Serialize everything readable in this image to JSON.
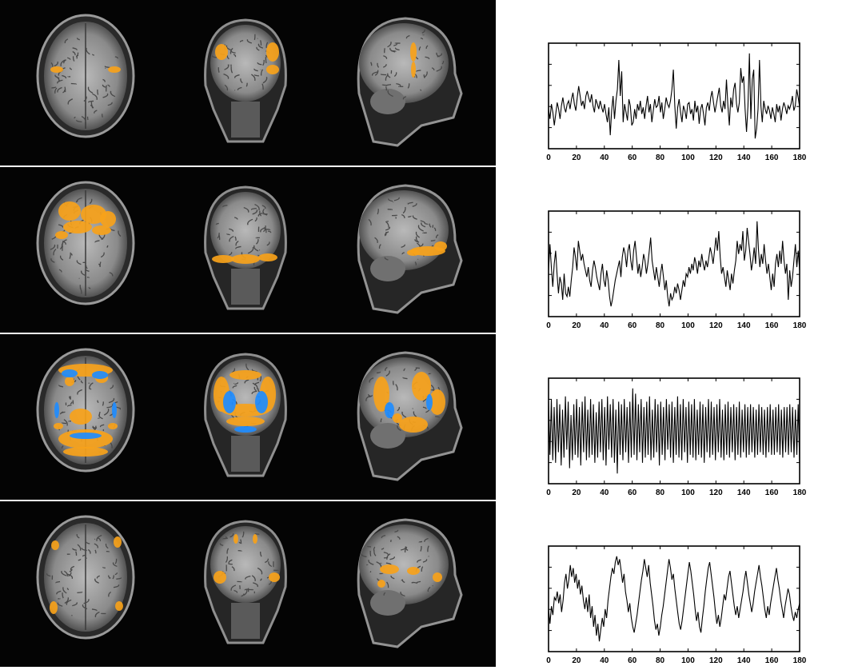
{
  "figure": {
    "rows": [
      {
        "views": [
          "axial",
          "coronal",
          "sagittal"
        ],
        "activation": "orange"
      },
      {
        "views": [
          "axial",
          "coronal",
          "sagittal"
        ],
        "activation": "orange"
      },
      {
        "views": [
          "axial",
          "coronal",
          "sagittal"
        ],
        "activation": "orange-and-blue"
      },
      {
        "views": [
          "axial",
          "coronal",
          "sagittal"
        ],
        "activation": "orange"
      }
    ],
    "colors": {
      "background": "#040404",
      "positive": "#f7a21a",
      "negative": "#1e8cff",
      "trace": "#000000"
    }
  },
  "chart_data": [
    {
      "type": "line",
      "xlim": [
        0,
        180
      ],
      "xticks": [
        "0",
        "20",
        "40",
        "60",
        "80",
        "100",
        "120",
        "140",
        "160",
        "180"
      ],
      "yticks_labeled": false,
      "series": [
        {
          "values": [
            0.2,
            -0.1,
            0.35,
            0.1,
            -0.3,
            0.05,
            0.4,
            0.2,
            -0.1,
            0.3,
            0.55,
            0.25,
            0.1,
            0.35,
            0.45,
            0.2,
            0.5,
            0.7,
            0.35,
            0.15,
            0.55,
            0.9,
            0.6,
            0.3,
            0.45,
            0.2,
            0.6,
            0.75,
            0.55,
            0.4,
            0.65,
            0.3,
            0.1,
            0.5,
            0.35,
            0.2,
            0.45,
            0.25,
            0.1,
            0.35,
            0.05,
            -0.2,
            0.25,
            -0.6,
            0.15,
            0.6,
            -0.1,
            0.45,
            0.8,
            1.7,
            0.6,
            1.35,
            -0.2,
            0.35,
            0.1,
            -0.15,
            0.5,
            0.3,
            -0.3,
            -0.2,
            0.2,
            -0.1,
            0.35,
            0.15,
            0.45,
            0.05,
            0.25,
            -0.1,
            0.3,
            0.6,
            0.1,
            0.35,
            -0.2,
            0.15,
            0.5,
            0.25,
            0.3,
            0.6,
            0.1,
            0.4,
            -0.1,
            0.2,
            0.55,
            0.35,
            0.25,
            0.45,
            0.8,
            1.4,
            0.3,
            -0.4,
            0.25,
            0.5,
            0.1,
            -0.2,
            0.3,
            0.15,
            -0.1,
            0.35,
            0.4,
            0.05,
            0.2,
            -0.15,
            0.45,
            0.1,
            0.3,
            -0.25,
            0.2,
            0.35,
            0.05,
            -0.3,
            0.25,
            0.4,
            0.15,
            0.55,
            0.75,
            0.4,
            0.1,
            0.35,
            0.6,
            0.85,
            0.3,
            0.1,
            0.45,
            0.2,
            1.1,
            0.3,
            -0.3,
            0.55,
            0.25,
            0.8,
            1.0,
            0.35,
            0.1,
            0.4,
            1.45,
            1.0,
            1.2,
            0.2,
            -0.5,
            0.3,
            1.9,
            -0.1,
            1.1,
            1.4,
            -0.7,
            -0.4,
            0.2,
            1.7,
            0.3,
            -0.2,
            0.45,
            0.2,
            0.05,
            0.3,
            0.15,
            -0.1,
            0.25,
            0.05,
            -0.2,
            0.35,
            0.1,
            0.3,
            -0.15,
            0.2,
            0.4,
            0.25,
            0.05,
            0.3,
            0.2,
            0.35,
            0.6,
            0.15,
            0.3,
            0.8,
            0.55,
            0.25
          ]
        }
      ]
    },
    {
      "type": "line",
      "xlim": [
        0,
        180
      ],
      "xticks": [
        "0",
        "20",
        "40",
        "60",
        "80",
        "100",
        "120",
        "140",
        "160",
        "180"
      ],
      "yticks_labeled": false,
      "series": [
        {
          "values": [
            0.3,
            1.1,
            0.4,
            -0.2,
            0.5,
            0.9,
            0.2,
            -0.4,
            0.1,
            -0.1,
            -0.6,
            0.2,
            -0.4,
            -0.5,
            -0.2,
            -0.5,
            0.0,
            0.4,
            1.0,
            0.7,
            0.3,
            1.2,
            0.9,
            0.6,
            0.8,
            0.5,
            0.3,
            0.1,
            0.4,
            0.0,
            -0.2,
            0.3,
            0.6,
            0.4,
            0.1,
            -0.1,
            -0.3,
            0.2,
            0.5,
            0.0,
            -0.2,
            0.3,
            0.0,
            -0.5,
            -0.8,
            -0.6,
            -0.3,
            0.0,
            0.2,
            0.4,
            0.6,
            0.1,
            0.7,
            1.0,
            0.8,
            0.4,
            0.9,
            1.1,
            0.6,
            0.3,
            0.9,
            1.2,
            0.7,
            0.2,
            0.5,
            0.1,
            0.4,
            0.8,
            0.6,
            0.2,
            0.5,
            0.9,
            1.3,
            0.6,
            0.3,
            0.0,
            0.4,
            0.1,
            -0.2,
            0.2,
            0.5,
            0.1,
            -0.3,
            0.0,
            -0.5,
            -0.8,
            -0.4,
            -0.6,
            -0.5,
            -0.2,
            -0.4,
            -0.1,
            -0.3,
            -0.6,
            -0.3,
            0.0,
            -0.2,
            0.2,
            0.1,
            0.4,
            0.2,
            0.5,
            0.3,
            0.7,
            0.5,
            0.2,
            0.6,
            0.4,
            0.8,
            0.5,
            0.3,
            0.6,
            0.4,
            0.7,
            1.0,
            0.8,
            0.5,
            0.9,
            1.3,
            0.9,
            1.5,
            0.7,
            0.2,
            0.4,
            0.1,
            -0.2,
            0.3,
            0.0,
            -0.3,
            0.2,
            -0.1,
            0.3,
            0.6,
            1.2,
            0.8,
            1.1,
            0.9,
            1.5,
            0.6,
            0.9,
            1.6,
            1.2,
            0.8,
            0.3,
            0.6,
            1.0,
            0.5,
            1.8,
            0.9,
            0.4,
            0.8,
            0.5,
            1.1,
            0.6,
            0.2,
            0.5,
            0.1,
            -0.3,
            0.2,
            -0.2,
            0.5,
            0.8,
            0.4,
            0.9,
            0.5,
            1.2,
            0.6,
            0.2,
            0.5,
            -0.6,
            0.3,
            -0.2,
            0.1,
            0.6,
            1.1,
            0.4,
            0.9,
            0.3
          ]
        }
      ]
    },
    {
      "type": "line",
      "xlim": [
        0,
        180
      ],
      "xticks": [
        "0",
        "20",
        "40",
        "60",
        "80",
        "100",
        "120",
        "140",
        "160",
        "180"
      ],
      "yticks_labeled": false,
      "series": [
        {
          "values": [
            1.1,
            -0.9,
            1.2,
            -1.1,
            0.9,
            -1.2,
            1.2,
            -0.8,
            1.0,
            -1.3,
            0.8,
            -1.0,
            1.3,
            -0.7,
            1.1,
            -1.4,
            0.6,
            -1.1,
            1.0,
            -0.9,
            1.2,
            -1.0,
            0.9,
            -1.3,
            1.1,
            -0.8,
            1.3,
            -1.1,
            0.8,
            -1.0,
            1.2,
            -0.9,
            1.0,
            -1.2,
            0.7,
            -1.0,
            1.1,
            -0.8,
            1.2,
            -1.1,
            0.9,
            -1.3,
            1.3,
            -0.7,
            1.0,
            -1.0,
            1.2,
            -1.2,
            0.8,
            -1.6,
            1.1,
            -0.9,
            1.0,
            -1.1,
            1.2,
            -0.8,
            0.9,
            -1.2,
            1.1,
            -1.0,
            1.6,
            -0.9,
            1.4,
            -1.1,
            1.0,
            -0.8,
            1.2,
            -1.2,
            0.9,
            -1.0,
            1.1,
            -0.9,
            1.3,
            -1.1,
            0.8,
            -1.0,
            1.2,
            -0.8,
            1.0,
            -1.3,
            1.1,
            -0.9,
            0.9,
            -1.1,
            1.2,
            -0.7,
            1.0,
            -1.0,
            1.1,
            -1.2,
            0.9,
            -0.9,
            1.3,
            -1.0,
            1.0,
            -1.1,
            1.2,
            -0.8,
            0.9,
            -1.2,
            1.1,
            -0.9,
            1.0,
            -1.0,
            1.2,
            -1.1,
            0.8,
            -0.9,
            1.1,
            -1.0,
            1.0,
            -1.2,
            0.9,
            -0.8,
            1.2,
            -1.0,
            1.1,
            -0.9,
            0.9,
            -1.1,
            1.0,
            -0.8,
            1.2,
            -1.0,
            0.8,
            -1.1,
            1.0,
            -0.9,
            1.1,
            -1.0,
            0.9,
            -0.8,
            1.0,
            -1.1,
            0.9,
            -0.9,
            1.1,
            -1.0,
            0.8,
            -0.8,
            1.0,
            -1.0,
            0.9,
            -0.9,
            1.0,
            -0.8,
            0.9,
            -1.0,
            0.8,
            -0.9,
            1.0,
            -0.8,
            0.9,
            -0.9,
            0.8,
            -1.0,
            0.9,
            -0.8,
            1.0,
            -0.9,
            0.8,
            -0.9,
            0.9,
            -0.8,
            1.0,
            -0.9,
            0.8,
            -1.0,
            0.9,
            -0.8,
            0.9,
            -0.9,
            1.0,
            -0.8,
            0.9,
            -1.0,
            0.8,
            -0.9,
            1.0,
            -1.2
          ]
        }
      ]
    },
    {
      "type": "line",
      "xlim": [
        0,
        180
      ],
      "xticks": [
        "0",
        "20",
        "40",
        "60",
        "80",
        "100",
        "120",
        "140",
        "160",
        "180"
      ],
      "yticks_labeled": false,
      "series": [
        {
          "values": [
            -0.3,
            -0.8,
            -0.2,
            -0.5,
            0.1,
            0.0,
            0.3,
            -0.1,
            0.2,
            -0.4,
            0.0,
            0.6,
            0.9,
            0.4,
            0.7,
            1.2,
            0.8,
            1.1,
            0.6,
            0.9,
            0.4,
            0.7,
            0.2,
            0.5,
            0.0,
            -0.3,
            0.1,
            -0.4,
            0.2,
            -0.6,
            -0.2,
            -0.9,
            -0.5,
            -1.2,
            -0.8,
            -1.4,
            -1.0,
            -0.6,
            -0.9,
            -0.3,
            -0.6,
            0.0,
            0.4,
            0.8,
            1.1,
            0.9,
            1.3,
            1.5,
            1.2,
            1.4,
            1.0,
            0.6,
            0.9,
            0.3,
            0.0,
            -0.4,
            -0.1,
            -0.6,
            -0.9,
            -1.1,
            -0.8,
            -0.5,
            -0.1,
            0.3,
            0.7,
            1.0,
            1.4,
            1.1,
            0.8,
            1.2,
            0.6,
            0.2,
            -0.2,
            -0.7,
            -1.0,
            -0.8,
            -1.2,
            -0.9,
            -0.5,
            -0.2,
            0.2,
            0.6,
            1.0,
            1.4,
            1.1,
            0.7,
            0.9,
            0.4,
            0.0,
            -0.4,
            -0.8,
            -1.0,
            -0.7,
            -0.3,
            0.1,
            0.5,
            0.9,
            1.3,
            1.0,
            0.6,
            0.2,
            -0.3,
            -0.7,
            -0.4,
            -0.9,
            -1.1,
            -0.6,
            -0.2,
            0.3,
            0.7,
            1.1,
            1.3,
            0.9,
            0.5,
            0.1,
            -0.4,
            -0.8,
            -0.5,
            -0.9,
            -0.6,
            -0.2,
            0.2,
            0.0,
            0.4,
            0.8,
            1.0,
            0.6,
            0.2,
            -0.2,
            -0.5,
            -0.2,
            -0.6,
            -0.3,
            0.0,
            0.3,
            0.7,
            1.0,
            0.6,
            0.2,
            -0.1,
            -0.4,
            -0.1,
            0.3,
            0.6,
            0.9,
            1.2,
            0.8,
            0.5,
            0.1,
            -0.3,
            -0.6,
            -0.2,
            -0.5,
            -0.1,
            0.2,
            0.5,
            0.8,
            1.1,
            0.7,
            0.4,
            0.0,
            -0.3,
            -0.6,
            -0.2,
            0.1,
            0.4,
            0.2,
            -0.2,
            -0.5,
            -0.7,
            -0.4,
            -0.6,
            -0.3,
            -0.1
          ]
        }
      ]
    }
  ]
}
